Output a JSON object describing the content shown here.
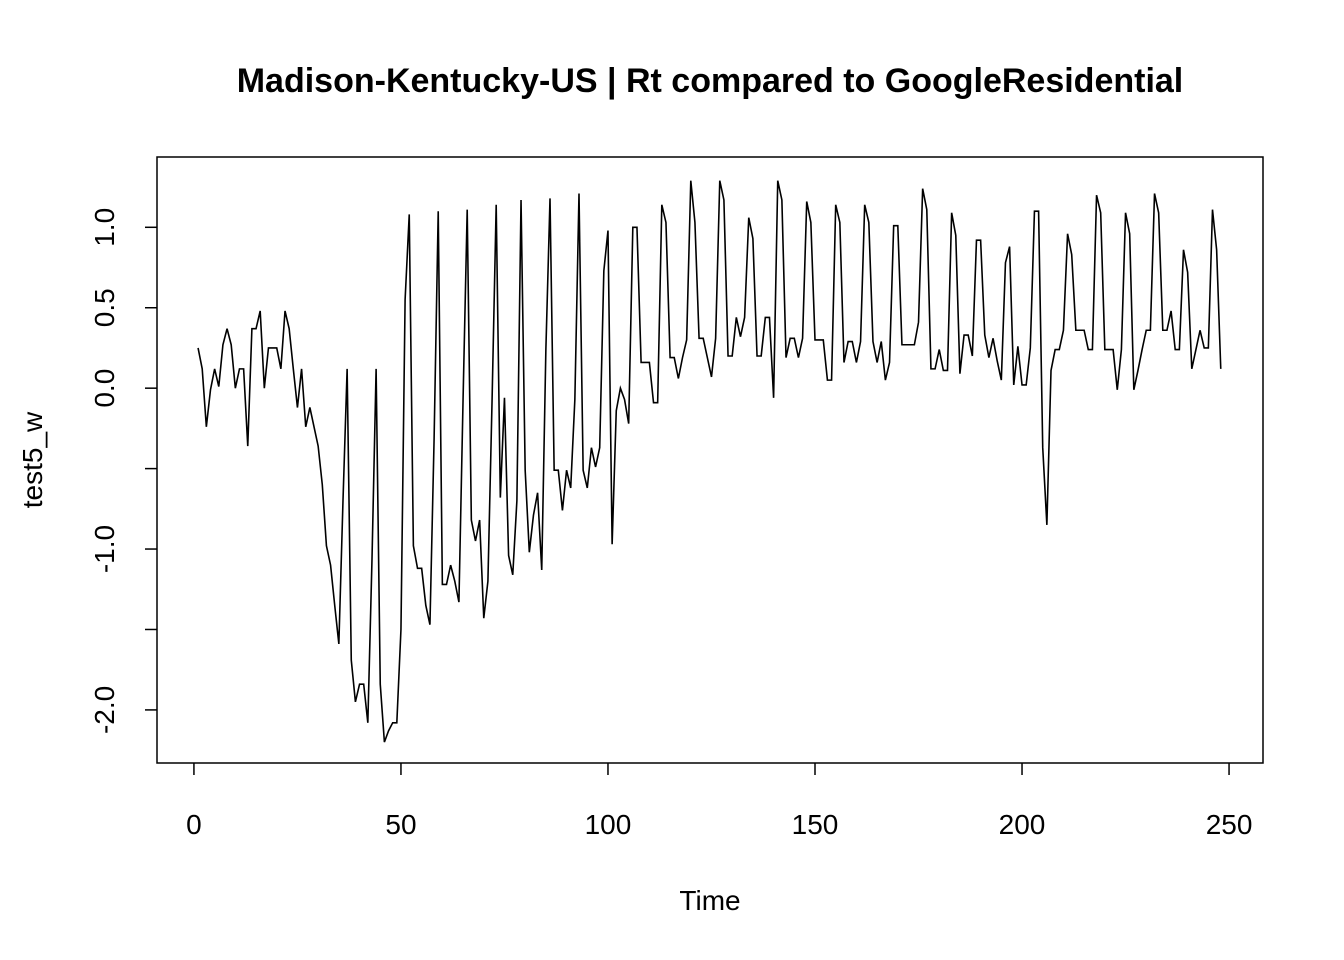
{
  "chart_data": {
    "type": "line",
    "title": "Madison-Kentucky-US | Rt compared to GoogleResidential",
    "x_label": "Time",
    "y_label": "test5_w",
    "color": "#000000",
    "x": [
      1,
      2,
      3,
      4,
      5,
      6,
      7,
      8,
      9,
      10,
      11,
      12,
      13,
      14,
      15,
      16,
      17,
      18,
      19,
      20,
      21,
      22,
      23,
      24,
      25,
      26,
      27,
      28,
      29,
      30,
      31,
      32,
      33,
      34,
      35,
      36,
      37,
      38,
      39,
      40,
      41,
      42,
      43,
      44,
      45,
      46,
      47,
      48,
      49,
      50,
      51,
      52,
      53,
      54,
      55,
      56,
      57,
      58,
      59,
      60,
      61,
      62,
      63,
      64,
      65,
      66,
      67,
      68,
      69,
      70,
      71,
      72,
      73,
      74,
      75,
      76,
      77,
      78,
      79,
      80,
      81,
      82,
      83,
      84,
      85,
      86,
      87,
      88,
      89,
      90,
      91,
      92,
      93,
      94,
      95,
      96,
      97,
      98,
      99,
      100,
      101,
      102,
      103,
      104,
      105,
      106,
      107,
      108,
      109,
      110,
      111,
      112,
      113,
      114,
      115,
      116,
      117,
      118,
      119,
      120,
      121,
      122,
      123,
      124,
      125,
      126,
      127,
      128,
      129,
      130,
      131,
      132,
      133,
      134,
      135,
      136,
      137,
      138,
      139,
      140,
      141,
      142,
      143,
      144,
      145,
      146,
      147,
      148,
      149,
      150,
      151,
      152,
      153,
      154,
      155,
      156,
      157,
      158,
      159,
      160,
      161,
      162,
      163,
      164,
      165,
      166,
      167,
      168,
      169,
      170,
      171,
      172,
      173,
      174,
      175,
      176,
      177,
      178,
      179,
      180,
      181,
      182,
      183,
      184,
      185,
      186,
      187,
      188,
      189,
      190,
      191,
      192,
      193,
      194,
      195,
      196,
      197,
      198,
      199,
      200,
      201,
      202,
      203,
      204,
      205,
      206,
      207,
      208,
      209,
      210,
      211,
      212,
      213,
      214,
      215,
      216,
      217,
      218,
      219,
      220,
      221,
      222,
      223,
      224,
      225,
      226,
      227,
      228,
      229,
      230,
      231,
      232,
      233,
      234,
      235,
      236,
      237,
      238,
      239,
      240,
      241,
      242,
      243,
      244,
      245,
      246,
      247,
      248
    ],
    "values": [
      0.25,
      0.12,
      -0.24,
      -0.01,
      0.12,
      0.01,
      0.27,
      0.37,
      0.27,
      0.0,
      0.12,
      0.12,
      -0.36,
      0.37,
      0.37,
      0.48,
      0.0,
      0.25,
      0.25,
      0.25,
      0.12,
      0.48,
      0.37,
      0.12,
      -0.12,
      0.12,
      -0.24,
      -0.12,
      -0.24,
      -0.36,
      -0.6,
      -0.98,
      -1.1,
      -1.35,
      -1.59,
      -0.7,
      0.12,
      -1.69,
      -1.95,
      -1.84,
      -1.84,
      -2.08,
      -1.07,
      0.12,
      -1.84,
      -2.2,
      -2.13,
      -2.08,
      -2.08,
      -1.5,
      0.55,
      1.08,
      -0.98,
      -1.12,
      -1.12,
      -1.35,
      -1.47,
      -0.32,
      1.1,
      -1.22,
      -1.22,
      -1.1,
      -1.2,
      -1.33,
      -0.07,
      1.11,
      -0.82,
      -0.95,
      -0.82,
      -1.43,
      -1.2,
      -0.08,
      1.14,
      -0.68,
      -0.06,
      -1.04,
      -1.16,
      -0.7,
      1.17,
      -0.51,
      -1.02,
      -0.79,
      -0.65,
      -1.13,
      0.24,
      1.18,
      -0.51,
      -0.51,
      -0.76,
      -0.51,
      -0.62,
      -0.07,
      1.21,
      -0.51,
      -0.62,
      -0.37,
      -0.49,
      -0.37,
      0.73,
      0.98,
      -0.97,
      -0.14,
      0.0,
      -0.07,
      -0.22,
      1.0,
      1.0,
      0.16,
      0.16,
      0.16,
      -0.09,
      -0.09,
      1.14,
      1.03,
      0.19,
      0.19,
      0.06,
      0.19,
      0.3,
      1.29,
      1.03,
      0.31,
      0.31,
      0.19,
      0.07,
      0.31,
      1.29,
      1.17,
      0.2,
      0.2,
      0.44,
      0.32,
      0.44,
      1.06,
      0.93,
      0.2,
      0.2,
      0.44,
      0.44,
      -0.06,
      1.29,
      1.17,
      0.19,
      0.31,
      0.31,
      0.19,
      0.31,
      1.16,
      1.03,
      0.3,
      0.3,
      0.3,
      0.05,
      0.05,
      1.14,
      1.03,
      0.16,
      0.29,
      0.29,
      0.16,
      0.29,
      1.14,
      1.03,
      0.29,
      0.16,
      0.29,
      0.05,
      0.16,
      1.01,
      1.01,
      0.27,
      0.27,
      0.27,
      0.27,
      0.41,
      1.24,
      1.11,
      0.12,
      0.12,
      0.24,
      0.11,
      0.11,
      1.09,
      0.95,
      0.09,
      0.33,
      0.33,
      0.2,
      0.92,
      0.92,
      0.33,
      0.19,
      0.31,
      0.17,
      0.05,
      0.78,
      0.88,
      0.02,
      0.26,
      0.02,
      0.02,
      0.25,
      1.1,
      1.1,
      -0.37,
      -0.85,
      0.11,
      0.24,
      0.24,
      0.36,
      0.96,
      0.83,
      0.36,
      0.36,
      0.36,
      0.24,
      0.24,
      1.2,
      1.09,
      0.24,
      0.24,
      0.24,
      -0.01,
      0.24,
      1.09,
      0.96,
      -0.01,
      0.11,
      0.24,
      0.36,
      0.36,
      1.21,
      1.09,
      0.36,
      0.36,
      0.48,
      0.24,
      0.24,
      0.86,
      0.72,
      0.12,
      0.24,
      0.36,
      0.25,
      0.25,
      1.11,
      0.86,
      0.12
    ],
    "xlim": [
      -8.92,
      258.2
    ],
    "ylim": [
      -2.33,
      1.437
    ],
    "xticks": [
      0,
      50,
      100,
      150,
      200,
      250
    ],
    "yticks": [
      {
        "value": -2,
        "label": "-2.0"
      },
      {
        "value": -1.5,
        "label": null
      },
      {
        "value": -1,
        "label": "-1.0"
      },
      {
        "value": -0.5,
        "label": null
      },
      {
        "value": 0,
        "label": "0.0"
      },
      {
        "value": 0.5,
        "label": "0.5"
      },
      {
        "value": 1,
        "label": "1.0"
      }
    ]
  }
}
